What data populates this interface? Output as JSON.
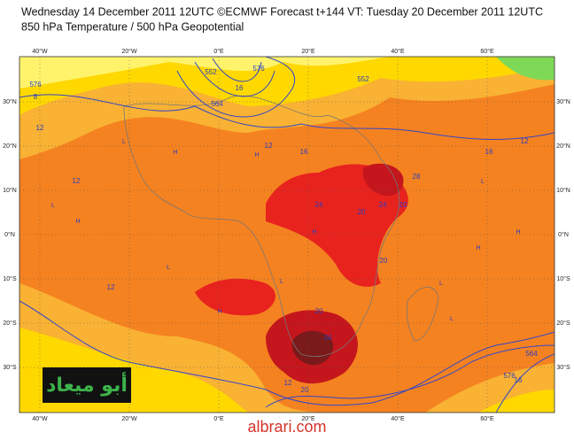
{
  "header": {
    "line1": "Wednesday 14 December 2011 12UTC ©ECMWF Forecast t+144 VT: Tuesday 20 December 2011 12UTC",
    "line2": "850 hPa Temperature / 500 hPa Geopotential"
  },
  "map": {
    "lon_labels": [
      "40°W",
      "20°W",
      "0°E",
      "20°E",
      "40°E",
      "60°E"
    ],
    "lat_labels": [
      "30°N",
      "20°N",
      "10°N",
      "0°N",
      "10°S",
      "20°S",
      "30°S"
    ],
    "contour_labels": [
      "576",
      "8",
      "12",
      "552",
      "564",
      "16",
      "12",
      "16",
      "24",
      "20",
      "24",
      "20",
      "20",
      "20",
      "24",
      "28",
      "16",
      "12",
      "12",
      "12",
      "576",
      "552",
      "564",
      "576",
      "16",
      "12",
      "20"
    ],
    "pressure_marks": [
      "H",
      "L",
      "H",
      "L",
      "H",
      "H",
      "L",
      "L",
      "H",
      "L",
      "H",
      "L",
      "H",
      "L"
    ]
  },
  "watermark": {
    "logo": "أبو ميعاد",
    "site": "albrari.com"
  }
}
